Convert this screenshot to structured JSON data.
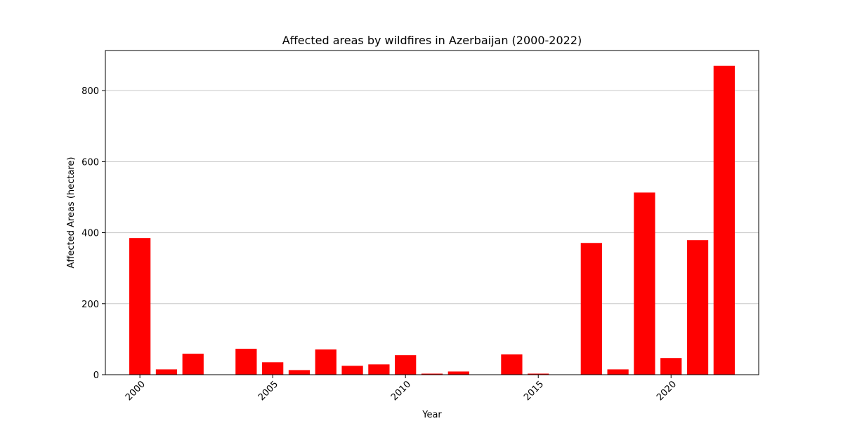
{
  "chart_data": {
    "type": "bar",
    "title": "Affected areas by wildfires in Azerbaijan (2000-2022)",
    "xlabel": "Year",
    "ylabel": "Affected Areas (hectare)",
    "x": [
      2000,
      2001,
      2002,
      2003,
      2004,
      2005,
      2006,
      2007,
      2008,
      2009,
      2010,
      2011,
      2012,
      2013,
      2014,
      2015,
      2016,
      2017,
      2018,
      2019,
      2020,
      2021,
      2022
    ],
    "values": [
      385,
      15,
      59,
      0,
      73,
      35,
      13,
      71,
      25,
      29,
      55,
      3,
      9,
      0,
      57,
      3,
      0,
      371,
      15,
      513,
      47,
      379,
      870
    ],
    "xlim": [
      1998.7,
      2023.3
    ],
    "ylim": [
      0,
      913
    ],
    "xticks": [
      2000,
      2005,
      2010,
      2015,
      2020
    ],
    "yticks": [
      0,
      200,
      400,
      600,
      800
    ],
    "grid": "y",
    "bar_color": "#ff0000"
  }
}
